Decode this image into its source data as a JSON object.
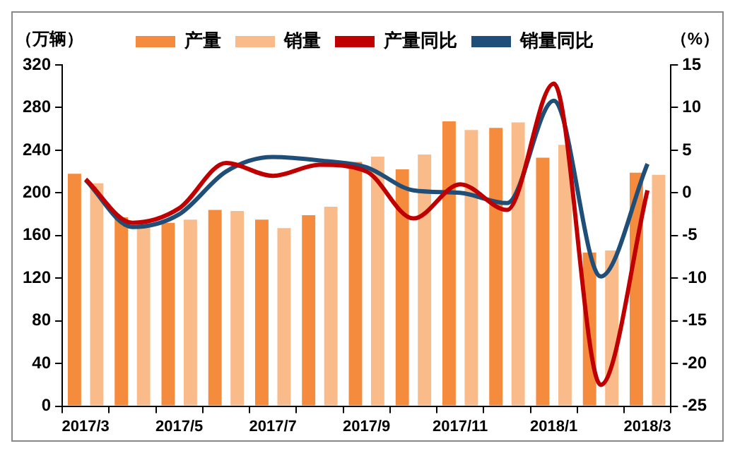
{
  "chart_data": {
    "type": "bar",
    "ylabel": "（万辆）",
    "y2label": "（%）",
    "categories": [
      "2017/3",
      null,
      "2017/5",
      null,
      "2017/7",
      null,
      "2017/9",
      null,
      "2017/11",
      null,
      "2018/1",
      null,
      "2018/3"
    ],
    "series": [
      {
        "name": "产量",
        "color": "#f58b3c",
        "values": [
          218,
          177,
          172,
          184,
          175,
          179,
          229,
          222,
          267,
          261,
          233,
          144,
          219
        ]
      },
      {
        "name": "销量",
        "color": "#f9bb8a",
        "values": [
          209,
          173,
          175,
          183,
          167,
          187,
          234,
          236,
          259,
          266,
          245,
          146,
          217
        ]
      },
      {
        "name": "产量同比",
        "type": "line",
        "axis": "y2",
        "color": "#c00000",
        "values": [
          1.6,
          -3.5,
          -1.8,
          3.5,
          2,
          3.3,
          2.5,
          -3,
          1,
          -2,
          12.8,
          -22.5,
          0.3
        ]
      },
      {
        "name": "销量同比",
        "type": "line",
        "axis": "y2",
        "color": "#1f4e79",
        "values": [
          1.5,
          -4,
          -2.5,
          2.5,
          4.2,
          3.8,
          3,
          0.3,
          0,
          -1.2,
          10.8,
          -9.8,
          3.4
        ]
      }
    ],
    "ylim": [
      0,
      320
    ],
    "yticks": [
      0,
      40,
      80,
      120,
      160,
      200,
      240,
      280,
      320
    ],
    "y2lim": [
      -25,
      15
    ],
    "y2ticks": [
      -25,
      -20,
      -15,
      -10,
      -5,
      0,
      5,
      10,
      15
    ],
    "legend": "top",
    "grid": false,
    "marker": "none",
    "line_style": "solid"
  }
}
